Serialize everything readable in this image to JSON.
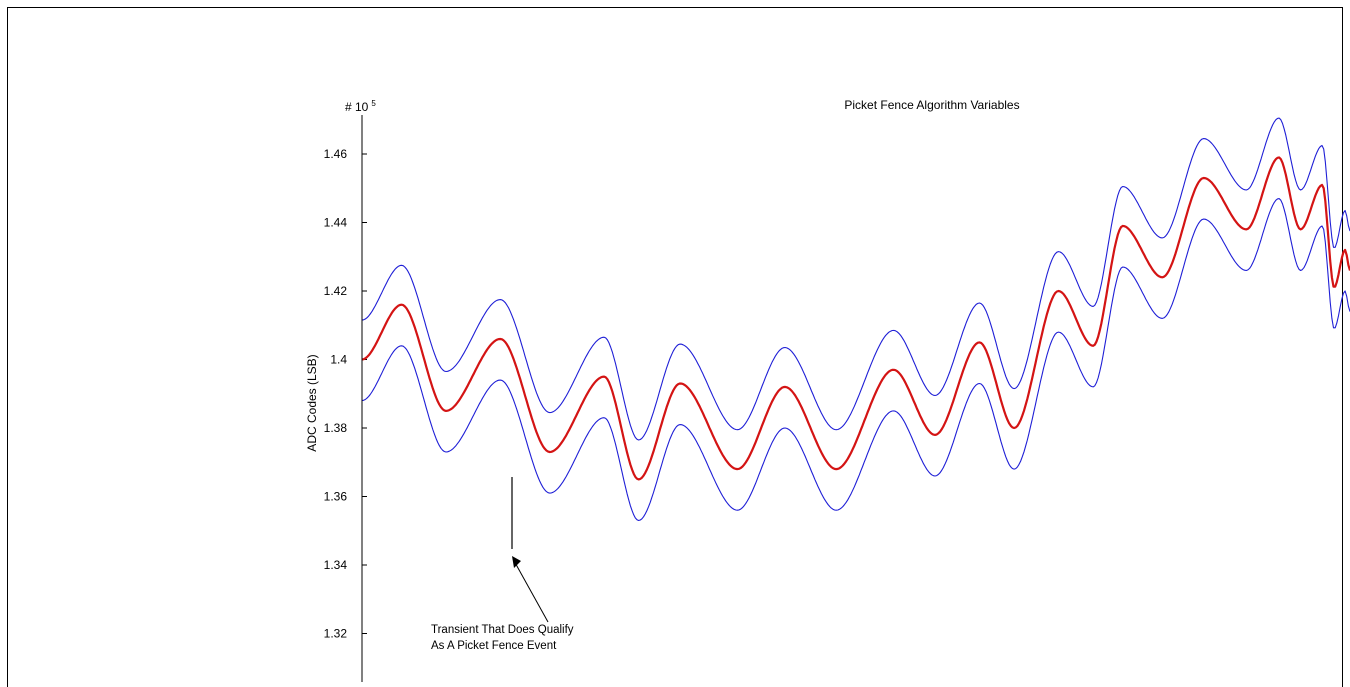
{
  "chart_data": {
    "type": "line",
    "title": "Picket Fence Algorithm Variables",
    "xlabel": "",
    "ylabel": "ADC Codes (LSB)",
    "y_multiplier_label": "# 10",
    "y_multiplier_exponent": "5",
    "ylim": [
      1.305,
      1.47
    ],
    "xlim": [
      0,
      1
    ],
    "y_ticks": [
      1.32,
      1.34,
      1.36,
      1.38,
      1.4,
      1.42,
      1.44,
      1.46
    ],
    "y_tick_labels": [
      "1.32",
      "1.34",
      "1.36",
      "1.38",
      "1.4",
      "1.42",
      "1.44",
      "1.46"
    ],
    "grid": false,
    "legend": "none",
    "series_keypoints": {
      "x": [
        0.0,
        0.04,
        0.085,
        0.14,
        0.19,
        0.245,
        0.28,
        0.322,
        0.38,
        0.428,
        0.48,
        0.538,
        0.58,
        0.625,
        0.66,
        0.705,
        0.74,
        0.77,
        0.81,
        0.852,
        0.895,
        0.928,
        0.95,
        0.972,
        0.984,
        0.995,
        1.0
      ],
      "middle": [
        1.4,
        1.416,
        1.385,
        1.406,
        1.373,
        1.395,
        1.365,
        1.393,
        1.368,
        1.392,
        1.368,
        1.397,
        1.378,
        1.405,
        1.38,
        1.42,
        1.404,
        1.439,
        1.424,
        1.453,
        1.438,
        1.459,
        1.438,
        1.451,
        1.421,
        1.432,
        1.426
      ]
    },
    "series": [
      {
        "role": "upper",
        "color": "#1f1fd6"
      },
      {
        "role": "middle",
        "color": "#d41414"
      },
      {
        "role": "lower",
        "color": "#1f1fd6"
      }
    ],
    "annotations": [
      {
        "text_lines": [
          "Transient That Does Qualify",
          "As A Picket Fence Event"
        ]
      }
    ]
  }
}
